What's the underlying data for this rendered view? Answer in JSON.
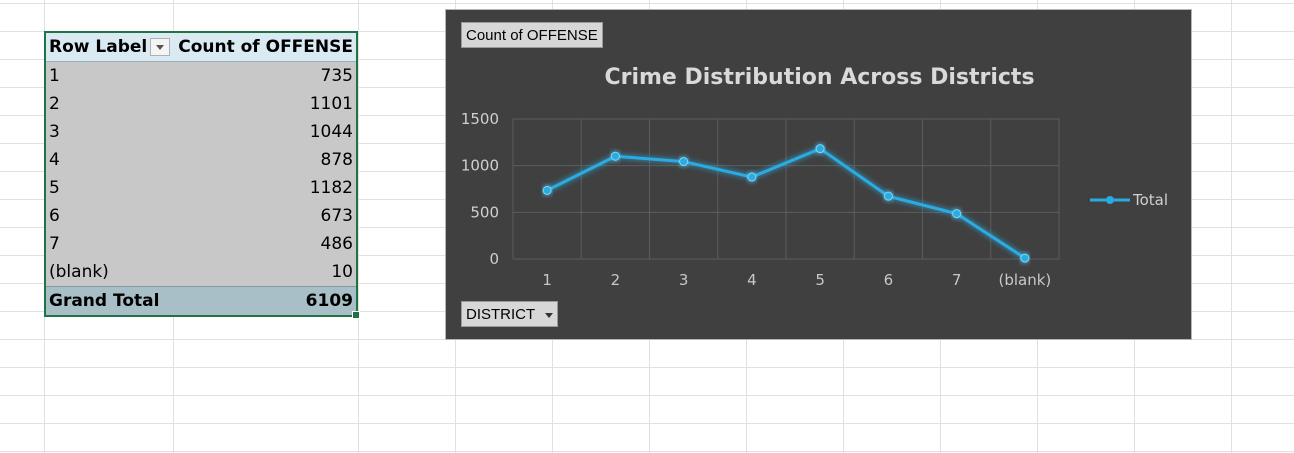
{
  "pivot": {
    "header": {
      "row_labels": "Row Labels",
      "count_label": "Count of OFFENSE"
    },
    "rows": [
      {
        "label": "1",
        "value": "735"
      },
      {
        "label": "2",
        "value": "1101"
      },
      {
        "label": "3",
        "value": "1044"
      },
      {
        "label": "4",
        "value": "878"
      },
      {
        "label": "5",
        "value": "1182"
      },
      {
        "label": "6",
        "value": "673"
      },
      {
        "label": "7",
        "value": "486"
      },
      {
        "label": "(blank)",
        "value": "10"
      }
    ],
    "total": {
      "label": "Grand Total",
      "value": "6109"
    }
  },
  "chart": {
    "value_field_button": "Count of OFFENSE",
    "axis_field_button": "DISTRICT"
  },
  "chart_data": {
    "type": "line",
    "title": "Crime Distribution Across Districts",
    "categories": [
      "1",
      "2",
      "3",
      "4",
      "5",
      "6",
      "7",
      "(blank)"
    ],
    "series": [
      {
        "name": "Total",
        "values": [
          735,
          1101,
          1044,
          878,
          1182,
          673,
          486,
          10
        ]
      }
    ],
    "yticks": [
      "0",
      "500",
      "1000",
      "1500"
    ],
    "ylim": [
      0,
      1500
    ],
    "xlabel": "",
    "ylabel": "",
    "grid": true,
    "legend_position": "right",
    "colors": {
      "line": "#29abe2",
      "background": "#404040",
      "grid": "#5c5c5c"
    }
  }
}
